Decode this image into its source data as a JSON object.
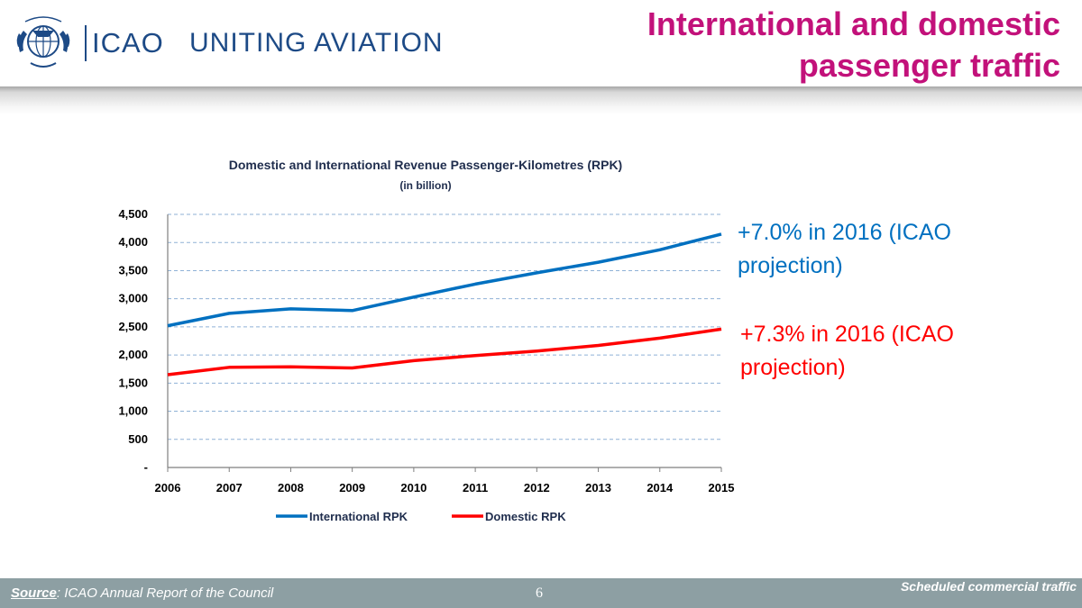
{
  "header": {
    "org": "ICAO",
    "tagline": "UNITING AVIATION",
    "title_line1": "International and domestic",
    "title_line2": "passenger traffic",
    "colors": {
      "brand": "#1d4a86",
      "title": "#c2117a"
    }
  },
  "annotations": {
    "international": "+7.0% in 2016 (ICAO projection)",
    "domestic": "+7.3% in 2016 (ICAO projection)"
  },
  "chart_data": {
    "type": "line",
    "title": "Domestic and International Revenue Passenger-Kilometres (RPK)",
    "subtitle": "(in billion)",
    "x": [
      "2006",
      "2007",
      "2008",
      "2009",
      "2010",
      "2011",
      "2012",
      "2013",
      "2014",
      "2015"
    ],
    "ylim": [
      0,
      4500
    ],
    "yticks": [
      0,
      500,
      1000,
      1500,
      2000,
      2500,
      3000,
      3500,
      4000,
      4500
    ],
    "ytick_labels": [
      "-",
      "500",
      "1,000",
      "1,500",
      "2,000",
      "2,500",
      "3,000",
      "3,500",
      "4,000",
      "4,500"
    ],
    "grid": true,
    "legend_position": "bottom",
    "series": [
      {
        "name": "International RPK",
        "color": "#0070c0",
        "values": [
          2520,
          2740,
          2820,
          2790,
          3030,
          3260,
          3460,
          3650,
          3870,
          4150
        ]
      },
      {
        "name": "Domestic RPK",
        "color": "#ff0000",
        "values": [
          1650,
          1780,
          1790,
          1770,
          1900,
          1990,
          2070,
          2170,
          2300,
          2460
        ]
      }
    ]
  },
  "footer": {
    "source_label": "Source",
    "source_text": ": ICAO Annual Report of the Council",
    "page_number": "6",
    "note": "Scheduled commercial traffic"
  }
}
